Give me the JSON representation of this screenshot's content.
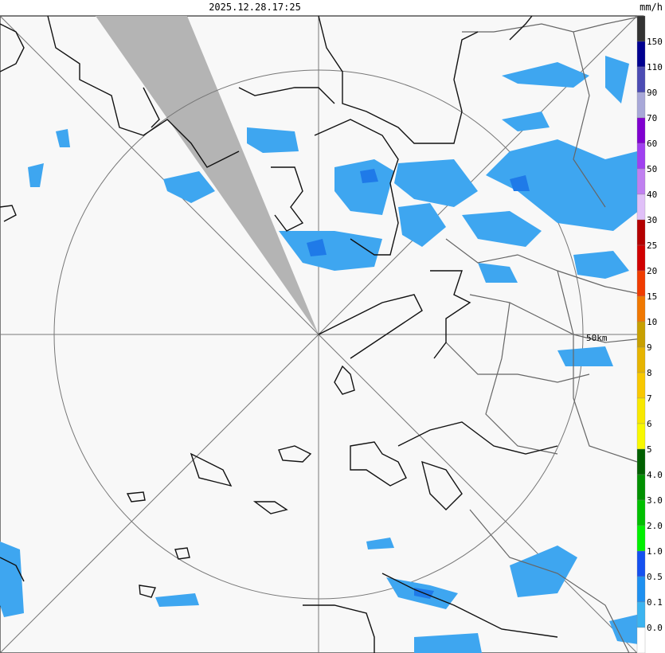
{
  "header": {
    "timestamp": "2025.12.28.17:25"
  },
  "map": {
    "range_label": "50km"
  },
  "legend": {
    "unit": "mm/h",
    "labels": [
      "150",
      "110",
      "90",
      "70",
      "60",
      "50",
      "40",
      "30",
      "25",
      "20",
      "15",
      "10",
      "9",
      "8",
      "7",
      "6",
      "5",
      "4.0",
      "3.0",
      "2.0",
      "1.0",
      "0.5",
      "0.1",
      "0.0"
    ],
    "colors": [
      "#333333",
      "#000090",
      "#4c4cb4",
      "#a8a8d8",
      "#8000d0",
      "#a040f0",
      "#c080f0",
      "#e0c0f8",
      "#b40000",
      "#d00000",
      "#f03c00",
      "#f07800",
      "#c8a000",
      "#e6b400",
      "#f8c800",
      "#f8e800",
      "#f8f800",
      "#006000",
      "#009000",
      "#00c000",
      "#00f000",
      "#1450f0",
      "#1e90f0",
      "#3cb4f0",
      "#ffffff"
    ]
  }
}
